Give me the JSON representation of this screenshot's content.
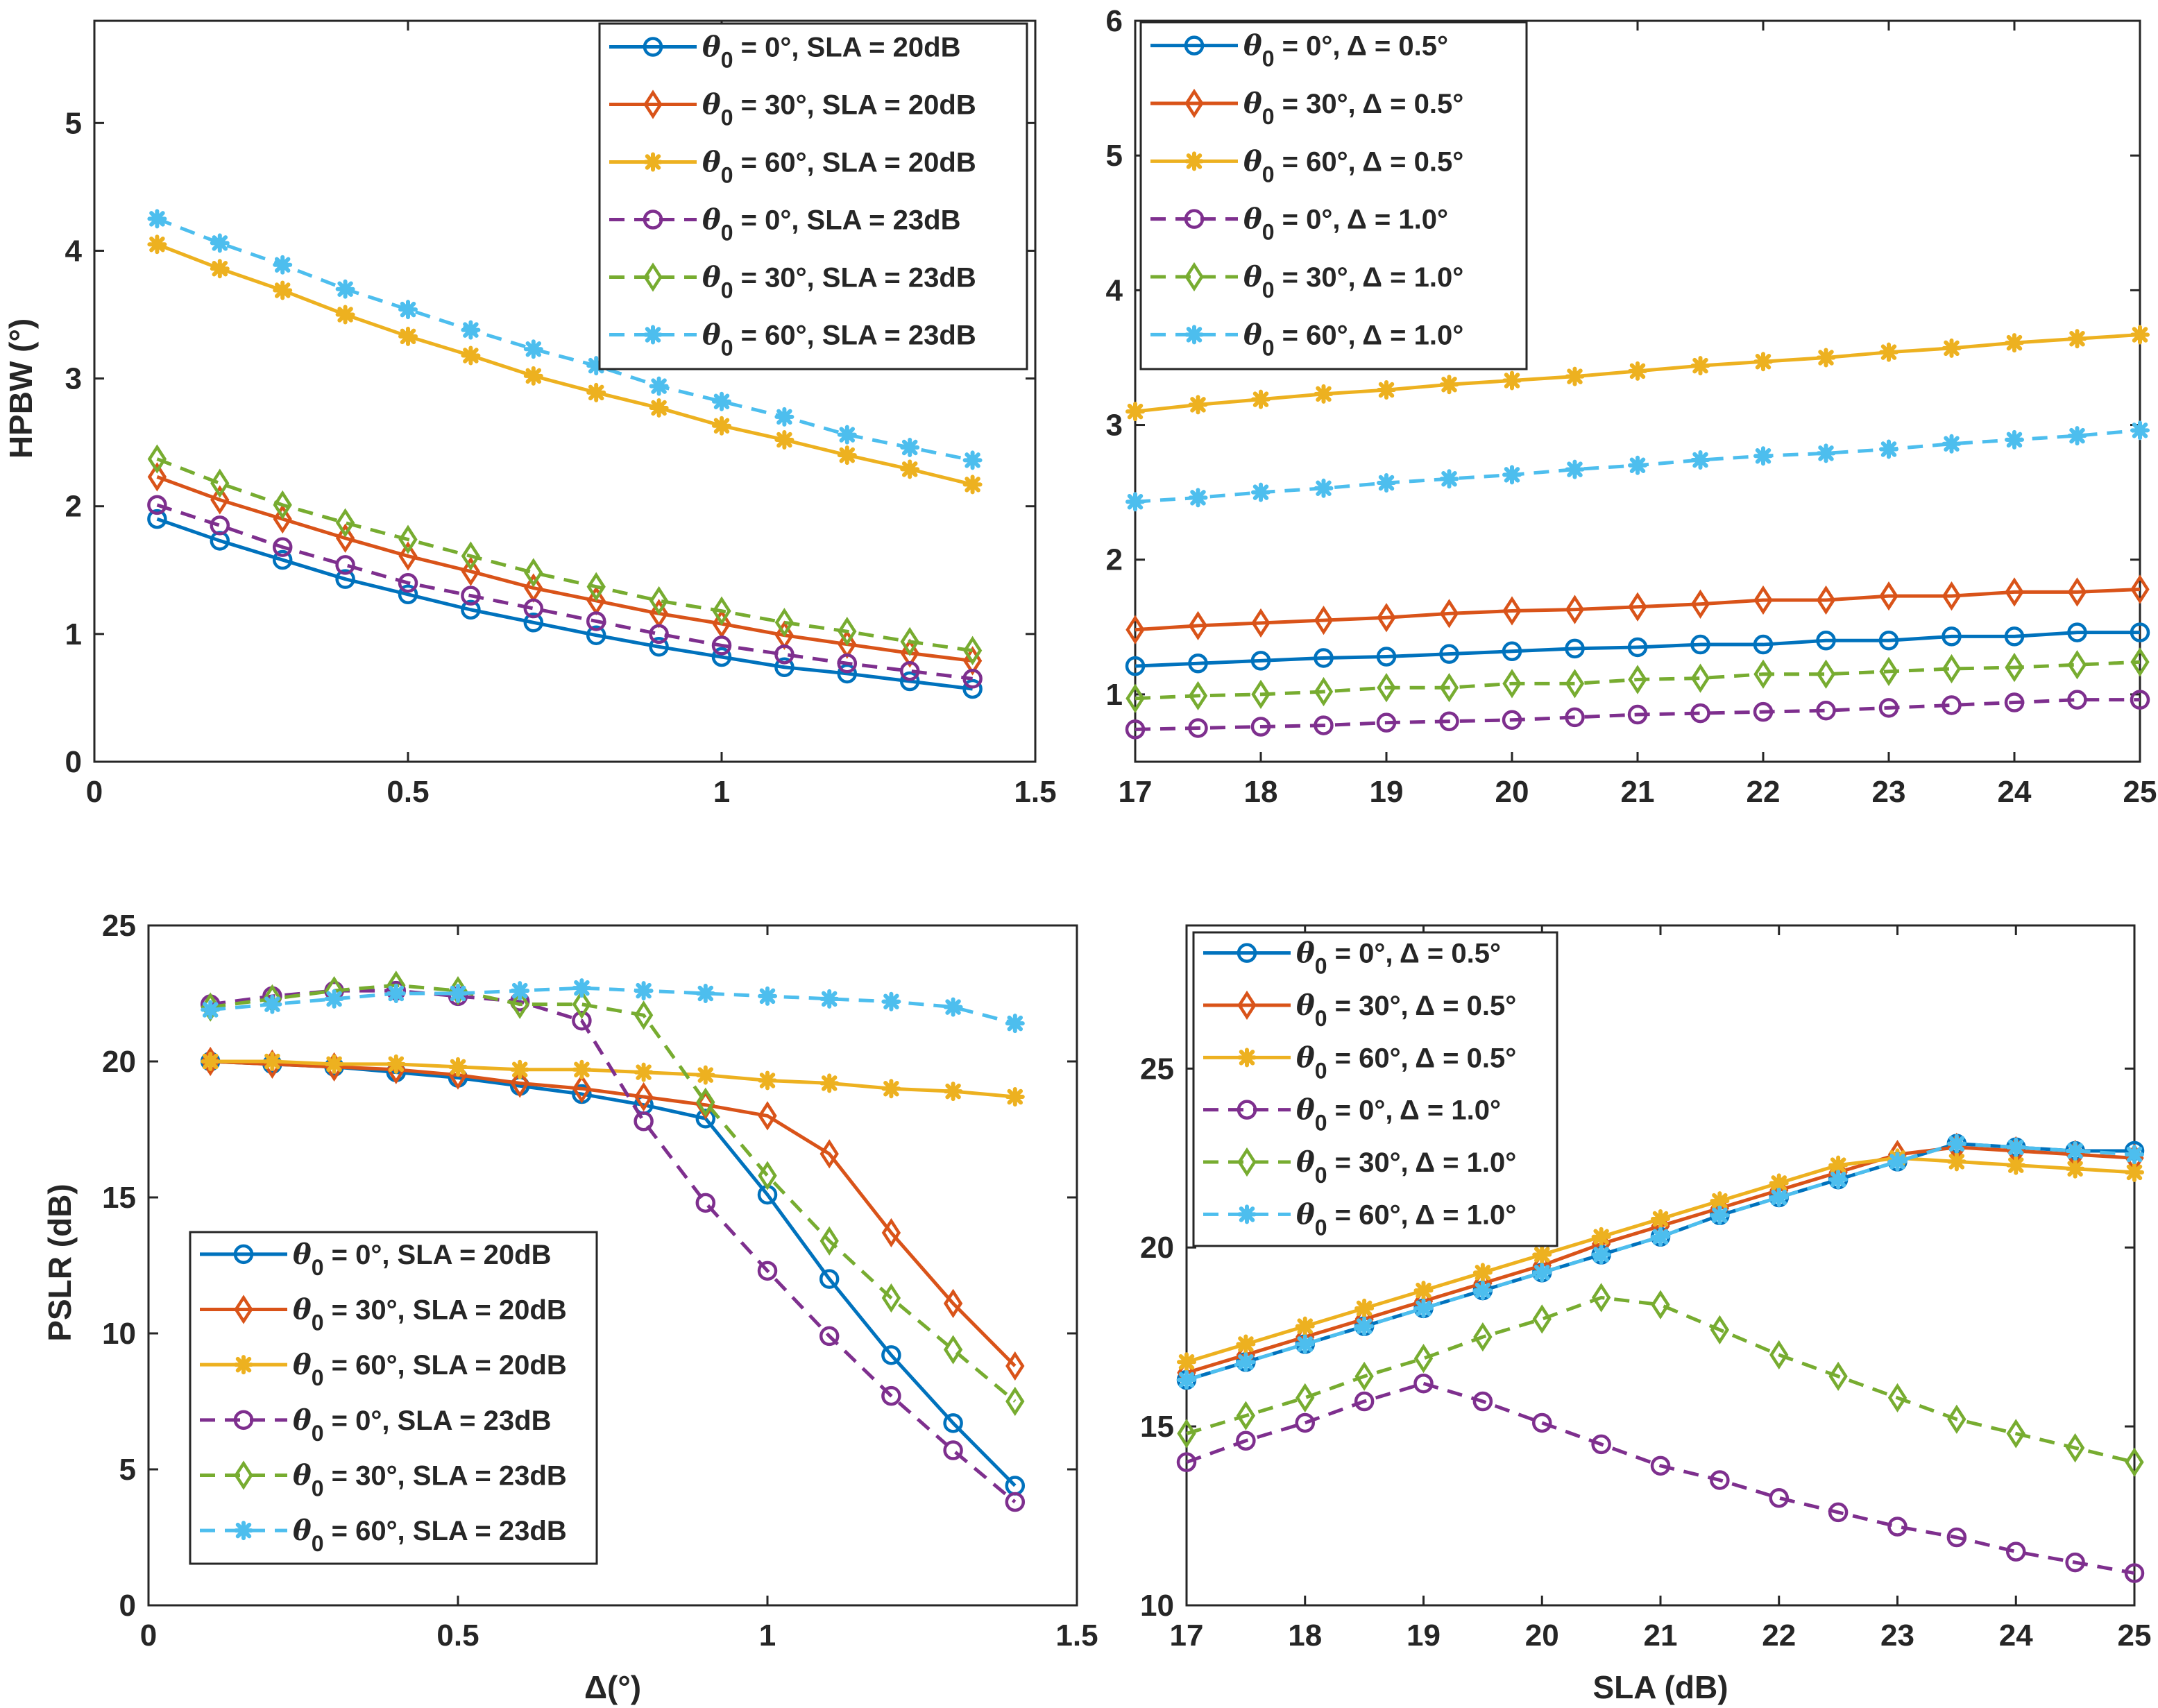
{
  "colors": [
    "#0072BD",
    "#D95319",
    "#EDB120",
    "#7E2F8E",
    "#77AC30",
    "#4DBEEE"
  ],
  "chart_data": [
    {
      "type": "line",
      "title": "",
      "xlabel": "",
      "ylabel": "HPBW (°)",
      "xlim": [
        0,
        1.5
      ],
      "ylim": [
        0,
        5.8
      ],
      "xticks": [
        0,
        0.5,
        1,
        1.5
      ],
      "xtick_labels": [
        "0",
        "0.5",
        "1",
        "1.5"
      ],
      "yticks": [
        0,
        1,
        2,
        3,
        4,
        5
      ],
      "ytick_labels": [
        "0",
        "1",
        "2",
        "3",
        "4",
        "5"
      ],
      "legend_position": "top-right",
      "x": [
        0.1,
        0.2,
        0.3,
        0.4,
        0.5,
        0.6,
        0.7,
        0.8,
        0.9,
        1.0,
        1.1,
        1.2,
        1.3,
        1.4
      ],
      "series": [
        {
          "name": "θ0 = 0°, SLA = 20dB",
          "marker": "circle",
          "dashed": false,
          "values": [
            1.9,
            1.73,
            1.58,
            1.43,
            1.31,
            1.19,
            1.09,
            0.99,
            0.9,
            0.82,
            0.74,
            0.69,
            0.63,
            0.57
          ]
        },
        {
          "name": "θ0 = 30°, SLA = 20dB",
          "marker": "diamond",
          "dashed": false,
          "values": [
            2.23,
            2.05,
            1.9,
            1.75,
            1.61,
            1.49,
            1.36,
            1.26,
            1.16,
            1.08,
            0.99,
            0.92,
            0.85,
            0.79
          ]
        },
        {
          "name": "θ0 = 60°, SLA = 20dB",
          "marker": "asterisk",
          "dashed": false,
          "values": [
            4.05,
            3.86,
            3.69,
            3.5,
            3.33,
            3.18,
            3.02,
            2.89,
            2.77,
            2.63,
            2.52,
            2.4,
            2.29,
            2.17
          ]
        },
        {
          "name": "θ0 = 0°, SLA = 23dB",
          "marker": "circle",
          "dashed": true,
          "values": [
            2.01,
            1.85,
            1.68,
            1.54,
            1.4,
            1.3,
            1.2,
            1.1,
            1.0,
            0.91,
            0.84,
            0.77,
            0.71,
            0.65
          ]
        },
        {
          "name": "θ0 = 30°, SLA = 23dB",
          "marker": "diamond",
          "dashed": true,
          "values": [
            2.37,
            2.18,
            2.01,
            1.87,
            1.74,
            1.61,
            1.48,
            1.37,
            1.26,
            1.18,
            1.09,
            1.02,
            0.94,
            0.87
          ]
        },
        {
          "name": "θ0 = 60°, SLA = 23dB",
          "marker": "asterisk",
          "dashed": true,
          "values": [
            4.25,
            4.06,
            3.89,
            3.7,
            3.54,
            3.38,
            3.23,
            3.1,
            2.94,
            2.82,
            2.7,
            2.56,
            2.46,
            2.36
          ]
        }
      ]
    },
    {
      "type": "line",
      "title": "",
      "xlabel": "",
      "ylabel": "",
      "xlim": [
        17,
        25
      ],
      "ylim": [
        0.5,
        6
      ],
      "xticks": [
        17,
        18,
        19,
        20,
        21,
        22,
        23,
        24,
        25
      ],
      "xtick_labels": [
        "17",
        "18",
        "19",
        "20",
        "21",
        "22",
        "23",
        "24",
        "25"
      ],
      "yticks": [
        1,
        2,
        3,
        4,
        5,
        6
      ],
      "ytick_labels": [
        "1",
        "2",
        "3",
        "4",
        "5",
        "6"
      ],
      "legend_position": "top-left",
      "x": [
        17,
        17.5,
        18,
        18.5,
        19,
        19.5,
        20,
        20.5,
        21,
        21.5,
        22,
        22.5,
        23,
        23.5,
        24,
        24.5,
        25
      ],
      "series": [
        {
          "name": "θ0 = 0°, Δ = 0.5°",
          "marker": "circle",
          "dashed": false,
          "values": [
            1.21,
            1.23,
            1.25,
            1.27,
            1.28,
            1.3,
            1.32,
            1.34,
            1.35,
            1.37,
            1.37,
            1.4,
            1.4,
            1.43,
            1.43,
            1.46,
            1.46
          ]
        },
        {
          "name": "θ0 = 30°, Δ = 0.5°",
          "marker": "diamond",
          "dashed": false,
          "values": [
            1.48,
            1.51,
            1.53,
            1.55,
            1.57,
            1.6,
            1.62,
            1.63,
            1.65,
            1.67,
            1.7,
            1.7,
            1.73,
            1.73,
            1.76,
            1.76,
            1.78
          ]
        },
        {
          "name": "θ0 = 60°, Δ = 0.5°",
          "marker": "asterisk",
          "dashed": false,
          "values": [
            3.1,
            3.15,
            3.19,
            3.23,
            3.26,
            3.3,
            3.33,
            3.36,
            3.4,
            3.44,
            3.47,
            3.5,
            3.54,
            3.57,
            3.61,
            3.64,
            3.67
          ]
        },
        {
          "name": "θ0 = 0°, Δ = 1.0°",
          "marker": "circle",
          "dashed": true,
          "values": [
            0.74,
            0.75,
            0.76,
            0.77,
            0.79,
            0.8,
            0.81,
            0.83,
            0.85,
            0.86,
            0.87,
            0.88,
            0.9,
            0.92,
            0.94,
            0.96,
            0.96
          ]
        },
        {
          "name": "θ0 = 30°, Δ = 1.0°",
          "marker": "diamond",
          "dashed": true,
          "values": [
            0.97,
            0.99,
            1.0,
            1.02,
            1.05,
            1.05,
            1.08,
            1.08,
            1.11,
            1.12,
            1.15,
            1.15,
            1.17,
            1.19,
            1.2,
            1.22,
            1.24
          ]
        },
        {
          "name": "θ0 = 60°, Δ = 1.0°",
          "marker": "asterisk",
          "dashed": true,
          "values": [
            2.43,
            2.46,
            2.5,
            2.53,
            2.57,
            2.6,
            2.63,
            2.67,
            2.7,
            2.74,
            2.77,
            2.79,
            2.82,
            2.86,
            2.89,
            2.92,
            2.96
          ]
        }
      ]
    },
    {
      "type": "line",
      "title": "",
      "xlabel": "Δ(°)",
      "ylabel": "PSLR (dB)",
      "xlim": [
        0,
        1.5
      ],
      "ylim": [
        0,
        25
      ],
      "xticks": [
        0,
        0.5,
        1,
        1.5
      ],
      "xtick_labels": [
        "0",
        "0.5",
        "1",
        "1.5"
      ],
      "yticks": [
        0,
        5,
        10,
        15,
        20,
        25
      ],
      "ytick_labels": [
        "0",
        "5",
        "10",
        "15",
        "20",
        "25"
      ],
      "legend_position": "bottom-left",
      "x": [
        0.1,
        0.2,
        0.3,
        0.4,
        0.5,
        0.6,
        0.7,
        0.8,
        0.9,
        1.0,
        1.1,
        1.2,
        1.3,
        1.4
      ],
      "series": [
        {
          "name": "θ0 = 0°, SLA = 20dB",
          "marker": "circle",
          "dashed": false,
          "values": [
            20,
            19.9,
            19.8,
            19.6,
            19.4,
            19.1,
            18.8,
            18.4,
            17.9,
            15.1,
            12,
            9.2,
            6.7,
            4.4
          ]
        },
        {
          "name": "θ0 = 30°, SLA = 20dB",
          "marker": "diamond",
          "dashed": false,
          "values": [
            20,
            19.9,
            19.8,
            19.7,
            19.5,
            19.2,
            19.0,
            18.7,
            18.4,
            18.0,
            16.6,
            13.7,
            11.1,
            8.8
          ]
        },
        {
          "name": "θ0 = 60°, SLA = 20dB",
          "marker": "asterisk",
          "dashed": false,
          "values": [
            20,
            20,
            19.9,
            19.9,
            19.8,
            19.7,
            19.7,
            19.6,
            19.5,
            19.3,
            19.2,
            19.0,
            18.9,
            18.7
          ]
        },
        {
          "name": "θ0 = 0°, SLA = 23dB",
          "marker": "circle",
          "dashed": true,
          "values": [
            22.1,
            22.4,
            22.6,
            22.6,
            22.4,
            22.2,
            21.5,
            17.8,
            14.8,
            12.3,
            9.9,
            7.7,
            5.7,
            3.8
          ]
        },
        {
          "name": "θ0 = 30°, SLA = 23dB",
          "marker": "diamond",
          "dashed": true,
          "values": [
            22.0,
            22.3,
            22.6,
            22.8,
            22.6,
            22.1,
            22.1,
            21.7,
            18.5,
            15.8,
            13.4,
            11.3,
            9.4,
            7.5
          ]
        },
        {
          "name": "θ0 = 60°, SLA = 23dB",
          "marker": "asterisk",
          "dashed": true,
          "values": [
            21.9,
            22.1,
            22.3,
            22.5,
            22.5,
            22.6,
            22.7,
            22.6,
            22.5,
            22.4,
            22.3,
            22.2,
            22.0,
            21.4
          ]
        }
      ]
    },
    {
      "type": "line",
      "title": "",
      "xlabel": "SLA (dB)",
      "ylabel": "",
      "xlim": [
        17,
        25
      ],
      "ylim": [
        10,
        29
      ],
      "xticks": [
        17,
        18,
        19,
        20,
        21,
        22,
        23,
        24,
        25
      ],
      "xtick_labels": [
        "17",
        "18",
        "19",
        "20",
        "21",
        "22",
        "23",
        "24",
        "25"
      ],
      "yticks": [
        10,
        15,
        20,
        25
      ],
      "ytick_labels": [
        "10",
        "15",
        "20",
        "25"
      ],
      "legend_position": "top-left",
      "x": [
        17,
        17.5,
        18,
        18.5,
        19,
        19.5,
        20,
        20.5,
        21,
        21.5,
        22,
        22.5,
        23,
        23.5,
        24,
        24.5,
        25
      ],
      "series": [
        {
          "name": "θ0 = 0°, Δ = 0.5°",
          "marker": "circle",
          "dashed": false,
          "values": [
            16.3,
            16.8,
            17.3,
            17.8,
            18.3,
            18.8,
            19.3,
            19.8,
            20.3,
            20.9,
            21.4,
            21.9,
            22.4,
            22.9,
            22.8,
            22.7,
            22.7
          ]
        },
        {
          "name": "θ0 = 30°, Δ = 0.5°",
          "marker": "diamond",
          "dashed": false,
          "values": [
            16.5,
            17.0,
            17.5,
            18.0,
            18.5,
            19.0,
            19.5,
            20.1,
            20.6,
            21.1,
            21.6,
            22.1,
            22.6,
            22.8,
            22.7,
            22.6,
            22.5
          ]
        },
        {
          "name": "θ0 = 60°, Δ = 0.5°",
          "marker": "asterisk",
          "dashed": false,
          "values": [
            16.8,
            17.3,
            17.8,
            18.3,
            18.8,
            19.3,
            19.8,
            20.3,
            20.8,
            21.3,
            21.8,
            22.3,
            22.5,
            22.4,
            22.3,
            22.2,
            22.1
          ]
        },
        {
          "name": "θ0 = 0°, Δ = 1.0°",
          "marker": "circle",
          "dashed": true,
          "values": [
            14.0,
            14.6,
            15.1,
            15.7,
            16.2,
            15.7,
            15.1,
            14.5,
            13.9,
            13.5,
            13.0,
            12.6,
            12.2,
            11.9,
            11.5,
            11.2,
            10.9
          ]
        },
        {
          "name": "θ0 = 30°, Δ = 1.0°",
          "marker": "diamond",
          "dashed": true,
          "values": [
            14.8,
            15.3,
            15.8,
            16.4,
            16.9,
            17.5,
            18.0,
            18.6,
            18.4,
            17.7,
            17.0,
            16.4,
            15.8,
            15.2,
            14.8,
            14.4,
            14.0
          ]
        },
        {
          "name": "θ0 = 60°, Δ = 1.0°",
          "marker": "asterisk",
          "dashed": true,
          "values": [
            16.3,
            16.8,
            17.3,
            17.8,
            18.3,
            18.8,
            19.3,
            19.8,
            20.3,
            20.9,
            21.4,
            21.9,
            22.4,
            22.9,
            22.8,
            22.7,
            22.6
          ]
        }
      ]
    }
  ]
}
